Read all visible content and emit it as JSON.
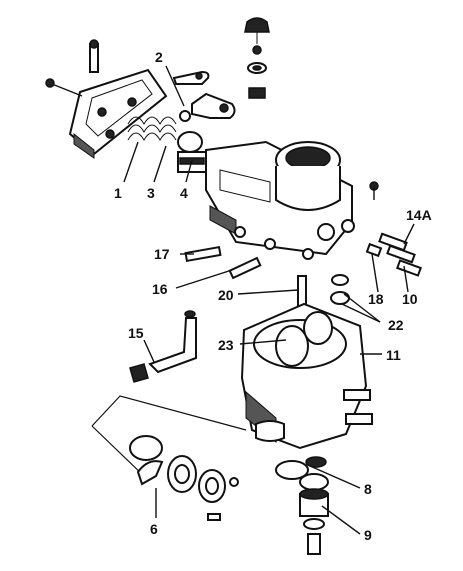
{
  "labels": {
    "l1": "1",
    "l2": "2",
    "l3": "3",
    "l4": "4",
    "l6": "6",
    "l8": "8",
    "l9": "9",
    "l10": "10",
    "l11": "11",
    "l14a": "14A",
    "l15": "15",
    "l16": "16",
    "l17": "17",
    "l18": "18",
    "l20": "20",
    "l22": "22",
    "l23": "23"
  }
}
